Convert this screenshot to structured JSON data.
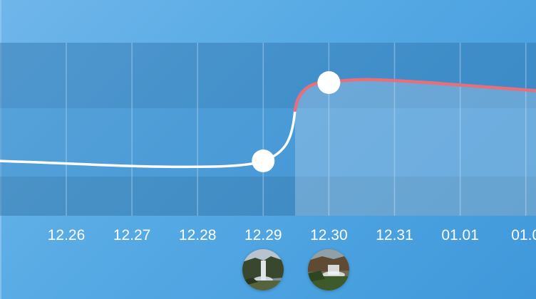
{
  "chart_data": {
    "type": "line",
    "x": [
      "12.26",
      "12.27",
      "12.28",
      "12.29",
      "12.30",
      "12.31",
      "01.01",
      "01.0"
    ],
    "highlighted_points": [
      "12.29",
      "12.30"
    ],
    "colors": {
      "line_before": "#ffffff",
      "line_after": "#e66f7c",
      "marker": "#ffffff"
    }
  },
  "thumbnails": [
    {
      "icon": "waterfall-thumbnail-icon",
      "anchor": "12.29"
    },
    {
      "icon": "waterfall-thumbnail-icon",
      "anchor": "12.30"
    }
  ]
}
